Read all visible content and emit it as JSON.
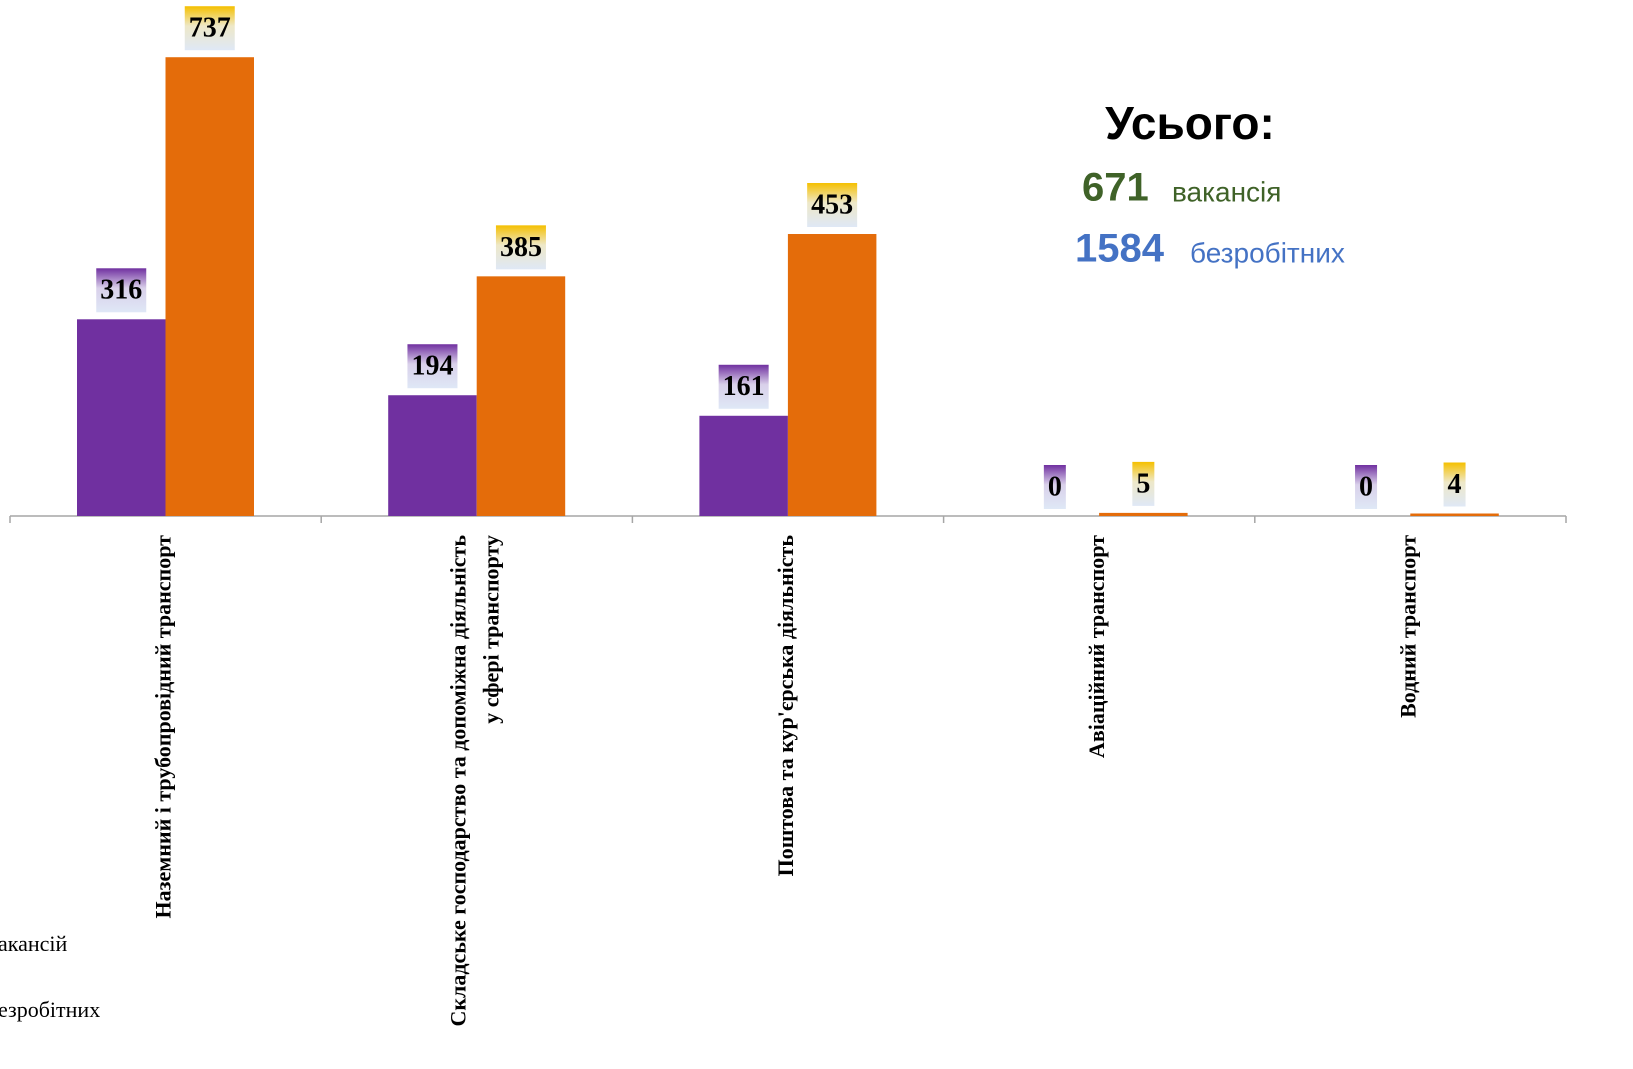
{
  "chart_data": {
    "type": "bar",
    "categories": [
      "Наземний і трубопровідний транспорт",
      "Складське господарство та допоміжна діяльність у сфері транспорту",
      "Поштова та кур'єрська діяльність",
      "Авіаційний транспорт",
      "Водний транспорт"
    ],
    "series": [
      {
        "name": "акансій",
        "color": "#7030a0",
        "values": [
          316,
          194,
          161,
          0,
          0
        ]
      },
      {
        "name": "езробітних",
        "color": "#e46c0a",
        "values": [
          737,
          385,
          453,
          5,
          4
        ]
      }
    ],
    "ylim": [
      0,
      800
    ],
    "annotations": {
      "total": "Усього:",
      "vacancies_number": "671",
      "vacancies_text": "вакансія",
      "unemployed_number": "1584",
      "unemployed_text": "безробітних"
    }
  }
}
